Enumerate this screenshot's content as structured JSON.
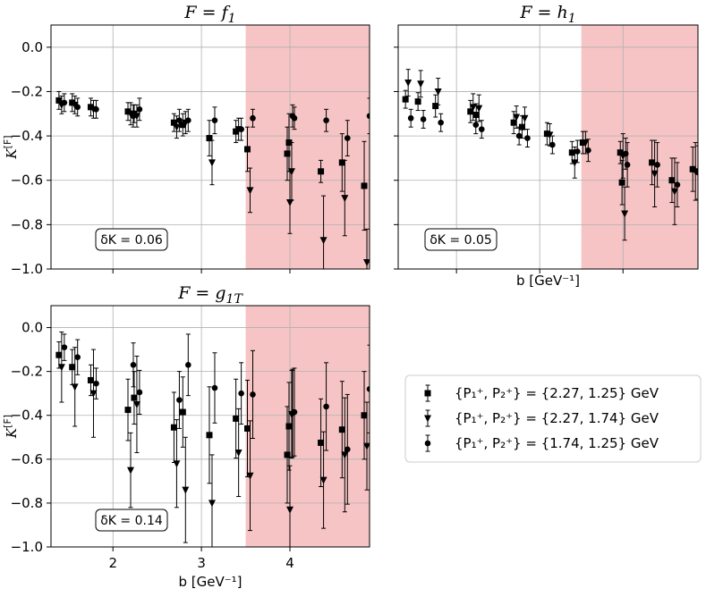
{
  "legend": {
    "entries": [
      {
        "marker": "square",
        "label": "{P₁⁺, P₂⁺} = {2.27, 1.25} GeV"
      },
      {
        "marker": "triangle-down",
        "label": "{P₁⁺, P₂⁺} = {2.27, 1.74} GeV"
      },
      {
        "marker": "circle",
        "label": "{P₁⁺, P₂⁺} = {1.74, 1.25} GeV"
      }
    ]
  },
  "colors": {
    "shade": "#f6c4c4",
    "grid": "#b0b0b0",
    "marker": "#000000"
  },
  "chart_data": [
    {
      "type": "scatter",
      "title_prefix": "F = ",
      "title_sym": "f",
      "title_sub": "1",
      "ylabel": "K",
      "ylabel_sup": "[F]",
      "xlabel": "",
      "box_label": "δK = 0.06",
      "xlim": [
        1.3,
        4.9
      ],
      "ylim": [
        -1.0,
        0.1
      ],
      "xticks": [
        2,
        3,
        4
      ],
      "xtick_labels_shown": false,
      "yticks": [
        "0.0",
        "−0.2",
        "−0.4",
        "−0.6",
        "−0.8",
        "−1.0"
      ],
      "ytick_values": [
        0.0,
        -0.2,
        -0.4,
        -0.6,
        -0.8,
        -1.0
      ],
      "ytick_labels_shown": true,
      "shade_from_x": 3.5,
      "series": [
        {
          "marker": "square",
          "points": [
            [
              1.42,
              -0.24,
              0.04
            ],
            [
              1.57,
              -0.25,
              0.04
            ],
            [
              1.78,
              -0.27,
              0.04
            ],
            [
              2.2,
              -0.29,
              0.04
            ],
            [
              2.27,
              -0.3,
              0.04
            ],
            [
              2.72,
              -0.34,
              0.04
            ],
            [
              2.82,
              -0.35,
              0.05
            ],
            [
              3.12,
              -0.41,
              0.08
            ],
            [
              3.42,
              -0.38,
              0.05
            ],
            [
              3.55,
              -0.46,
              0.1
            ],
            [
              4.0,
              -0.48,
              0.12
            ],
            [
              4.02,
              -0.43,
              0.13
            ],
            [
              4.38,
              -0.56,
              0.05
            ],
            [
              4.62,
              -0.52,
              0.13
            ],
            [
              4.87,
              -0.625,
              0.2
            ]
          ]
        },
        {
          "marker": "triangle-down",
          "points": [
            [
              1.42,
              -0.26,
              0.04
            ],
            [
              1.57,
              -0.26,
              0.04
            ],
            [
              1.78,
              -0.28,
              0.04
            ],
            [
              2.2,
              -0.3,
              0.05
            ],
            [
              2.27,
              -0.31,
              0.05
            ],
            [
              2.72,
              -0.36,
              0.05
            ],
            [
              2.82,
              -0.34,
              0.05
            ],
            [
              3.12,
              -0.52,
              0.1
            ],
            [
              3.42,
              -0.37,
              0.05
            ],
            [
              3.55,
              -0.645,
              0.1
            ],
            [
              4.0,
              -0.7,
              0.14
            ],
            [
              4.02,
              -0.56,
              0.13
            ],
            [
              4.38,
              -0.87,
              0.2
            ],
            [
              4.62,
              -0.68,
              0.17
            ],
            [
              4.87,
              -0.97,
              0.15
            ]
          ]
        },
        {
          "marker": "circle",
          "points": [
            [
              1.42,
              -0.25,
              0.04
            ],
            [
              1.57,
              -0.27,
              0.04
            ],
            [
              1.78,
              -0.28,
              0.04
            ],
            [
              2.2,
              -0.31,
              0.05
            ],
            [
              2.27,
              -0.28,
              0.05
            ],
            [
              2.72,
              -0.33,
              0.05
            ],
            [
              2.82,
              -0.33,
              0.05
            ],
            [
              3.12,
              -0.33,
              0.06
            ],
            [
              3.42,
              -0.37,
              0.05
            ],
            [
              3.55,
              -0.32,
              0.04
            ],
            [
              4.0,
              -0.31,
              0.05
            ],
            [
              4.02,
              -0.32,
              0.05
            ],
            [
              4.38,
              -0.33,
              0.05
            ],
            [
              4.62,
              -0.41,
              0.08
            ],
            [
              4.87,
              -0.31,
              0.08
            ]
          ]
        }
      ]
    },
    {
      "type": "scatter",
      "title_prefix": "F = ",
      "title_sym": "h",
      "title_sub": "1",
      "ylabel": "",
      "ylabel_sup": "",
      "xlabel": "b [GeV⁻¹]",
      "box_label": "δK = 0.05",
      "xlim": [
        1.3,
        4.9
      ],
      "ylim": [
        -1.0,
        0.1
      ],
      "xticks": [
        2,
        3,
        4
      ],
      "xtick_labels_shown": false,
      "yticks": [],
      "ytick_values": [
        0.0,
        -0.2,
        -0.4,
        -0.6,
        -0.8,
        -1.0
      ],
      "ytick_labels_shown": false,
      "shade_from_x": 3.5,
      "series": [
        {
          "marker": "square",
          "points": [
            [
              1.42,
              -0.235,
              0.04
            ],
            [
              1.57,
              -0.245,
              0.04
            ],
            [
              1.78,
              -0.265,
              0.05
            ],
            [
              2.2,
              -0.29,
              0.05
            ],
            [
              2.27,
              -0.305,
              0.05
            ],
            [
              2.72,
              -0.34,
              0.05
            ],
            [
              2.82,
              -0.36,
              0.05
            ],
            [
              3.12,
              -0.39,
              0.05
            ],
            [
              3.42,
              -0.475,
              0.05
            ],
            [
              3.55,
              -0.43,
              0.05
            ],
            [
              4.0,
              -0.475,
              0.05
            ],
            [
              4.02,
              -0.61,
              0.1
            ],
            [
              4.38,
              -0.52,
              0.1
            ],
            [
              4.62,
              -0.6,
              0.1
            ],
            [
              4.87,
              -0.55,
              0.1
            ]
          ]
        },
        {
          "marker": "triangle-down",
          "points": [
            [
              1.42,
              -0.16,
              0.06
            ],
            [
              1.57,
              -0.165,
              0.06
            ],
            [
              1.78,
              -0.2,
              0.06
            ],
            [
              2.2,
              -0.27,
              0.06
            ],
            [
              2.27,
              -0.275,
              0.06
            ],
            [
              2.72,
              -0.315,
              0.05
            ],
            [
              2.82,
              -0.32,
              0.05
            ],
            [
              3.12,
              -0.395,
              0.05
            ],
            [
              3.42,
              -0.52,
              0.07
            ],
            [
              3.55,
              -0.43,
              0.05
            ],
            [
              4.0,
              -0.49,
              0.1
            ],
            [
              4.02,
              -0.75,
              0.12
            ],
            [
              4.38,
              -0.57,
              0.15
            ],
            [
              4.62,
              -0.65,
              0.15
            ],
            [
              4.87,
              -0.56,
              0.13
            ]
          ]
        },
        {
          "marker": "circle",
          "points": [
            [
              1.42,
              -0.32,
              0.04
            ],
            [
              1.57,
              -0.325,
              0.04
            ],
            [
              1.78,
              -0.34,
              0.04
            ],
            [
              2.2,
              -0.35,
              0.04
            ],
            [
              2.27,
              -0.37,
              0.04
            ],
            [
              2.72,
              -0.4,
              0.04
            ],
            [
              2.82,
              -0.41,
              0.04
            ],
            [
              3.12,
              -0.44,
              0.04
            ],
            [
              3.42,
              -0.47,
              0.05
            ],
            [
              3.55,
              -0.465,
              0.05
            ],
            [
              4.0,
              -0.48,
              0.07
            ],
            [
              4.02,
              -0.53,
              0.1
            ],
            [
              4.38,
              -0.53,
              0.1
            ],
            [
              4.62,
              -0.62,
              0.1
            ],
            [
              4.87,
              -0.565,
              0.12
            ]
          ]
        }
      ]
    },
    {
      "type": "scatter",
      "title_prefix": "F = ",
      "title_sym": "g",
      "title_sub": "1T",
      "ylabel": "K",
      "ylabel_sup": "[F]",
      "xlabel": "b [GeV⁻¹]",
      "box_label": "δK = 0.14",
      "xlim": [
        1.3,
        4.9
      ],
      "ylim": [
        -1.0,
        0.1
      ],
      "xticks": [
        2,
        3,
        4
      ],
      "xtick_labels_shown": true,
      "yticks": [
        "0.0",
        "−0.2",
        "−0.4",
        "−0.6",
        "−0.8",
        "−1.0"
      ],
      "ytick_values": [
        0.0,
        -0.2,
        -0.4,
        -0.6,
        -0.8,
        -1.0
      ],
      "ytick_labels_shown": true,
      "shade_from_x": 3.5,
      "series": [
        {
          "marker": "square",
          "points": [
            [
              1.42,
              -0.125,
              0.06
            ],
            [
              1.57,
              -0.18,
              0.08
            ],
            [
              1.78,
              -0.24,
              0.07
            ],
            [
              2.2,
              -0.375,
              0.14
            ],
            [
              2.27,
              -0.32,
              0.12
            ],
            [
              2.72,
              -0.455,
              0.16
            ],
            [
              2.82,
              -0.385,
              0.16
            ],
            [
              3.12,
              -0.49,
              0.22
            ],
            [
              3.42,
              -0.415,
              0.18
            ],
            [
              3.55,
              -0.46,
              0.22
            ],
            [
              4.0,
              -0.58,
              0.22
            ],
            [
              4.02,
              -0.45,
              0.2
            ],
            [
              4.38,
              -0.525,
              0.2
            ],
            [
              4.62,
              -0.465,
              0.22
            ],
            [
              4.87,
              -0.4,
              0.2
            ]
          ]
        },
        {
          "marker": "triangle-down",
          "points": [
            [
              1.42,
              -0.18,
              0.16
            ],
            [
              1.57,
              -0.27,
              0.18
            ],
            [
              1.78,
              -0.3,
              0.2
            ],
            [
              2.2,
              -0.65,
              0.17
            ],
            [
              2.27,
              -0.35,
              0.22
            ],
            [
              2.72,
              -0.62,
              0.2
            ],
            [
              2.82,
              -0.74,
              0.24
            ],
            [
              3.12,
              -0.8,
              0.22
            ],
            [
              3.42,
              -0.57,
              0.2
            ],
            [
              3.55,
              -0.675,
              0.25
            ],
            [
              4.0,
              -0.83,
              0.2
            ],
            [
              4.02,
              -0.395,
              0.2
            ],
            [
              4.38,
              -0.695,
              0.22
            ],
            [
              4.62,
              -0.58,
              0.26
            ],
            [
              4.87,
              -0.54,
              0.2
            ]
          ]
        },
        {
          "marker": "circle",
          "points": [
            [
              1.42,
              -0.09,
              0.06
            ],
            [
              1.57,
              -0.135,
              0.08
            ],
            [
              1.78,
              -0.255,
              0.07
            ],
            [
              2.2,
              -0.17,
              0.1
            ],
            [
              2.27,
              -0.295,
              0.1
            ],
            [
              2.72,
              -0.33,
              0.13
            ],
            [
              2.82,
              -0.17,
              0.14
            ],
            [
              3.12,
              -0.275,
              0.16
            ],
            [
              3.42,
              -0.3,
              0.14
            ],
            [
              3.55,
              -0.305,
              0.2
            ],
            [
              4.0,
              -0.39,
              0.2
            ],
            [
              4.02,
              -0.385,
              0.2
            ],
            [
              4.38,
              -0.36,
              0.2
            ],
            [
              4.62,
              -0.555,
              0.25
            ],
            [
              4.87,
              -0.28,
              0.2
            ]
          ]
        }
      ]
    }
  ]
}
